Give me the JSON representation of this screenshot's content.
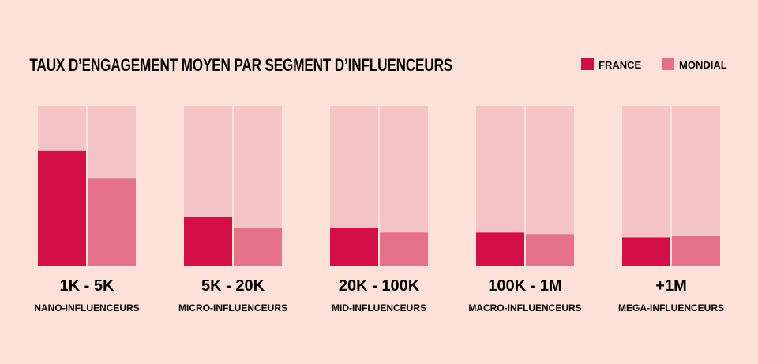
{
  "colors": {
    "background": "#fde0d7",
    "france": "#d30f48",
    "mondial": "#e4708a",
    "track": "#f3c3c6"
  },
  "chart_data": {
    "type": "bar",
    "title": "TAUX D’ENGAGEMENT MOYEN PAR SEGMENT D’INFLUENCEURS",
    "legend": {
      "position": "top-right",
      "items": [
        "FRANCE",
        "MONDIAL"
      ]
    },
    "ylim": [
      0,
      100
    ],
    "grid": false,
    "categories": [
      {
        "range": "1K - 5K",
        "segment": "NANO-INFLUENCEURS"
      },
      {
        "range": "5K - 20K",
        "segment": "MICRO-INFLUENCEURS"
      },
      {
        "range": "20K - 100K",
        "segment": "MID-INFLUENCEURS"
      },
      {
        "range": "100K - 1M",
        "segment": "MACRO-INFLUENCEURS"
      },
      {
        "range": "+1M",
        "segment": "MEGA-INFLUENCEURS"
      }
    ],
    "series": [
      {
        "name": "FRANCE",
        "values": [
          72,
          31,
          24,
          21,
          18
        ]
      },
      {
        "name": "MONDIAL",
        "values": [
          55,
          24,
          21,
          20,
          19
        ]
      }
    ]
  }
}
